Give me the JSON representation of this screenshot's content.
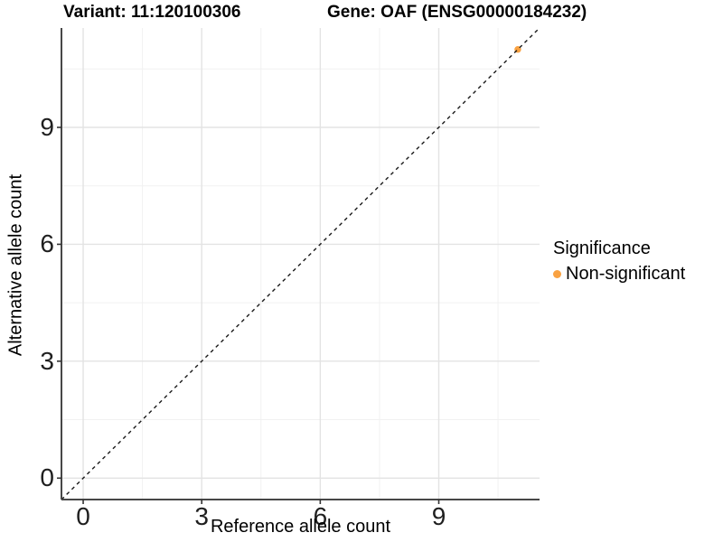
{
  "chart_data": {
    "type": "scatter",
    "titles": {
      "variant": "Variant: 11:120100306",
      "gene": "Gene: OAF (ENSG00000184232)"
    },
    "xlabel": "Reference allele count",
    "ylabel": "Alternative allele count",
    "xlim": [
      -0.55,
      11.55
    ],
    "ylim": [
      -0.55,
      11.55
    ],
    "x_ticks": [
      0,
      3,
      6,
      9
    ],
    "y_ticks": [
      0,
      3,
      6,
      9
    ],
    "x_minor_ticks": [
      1.5,
      4.5,
      7.5,
      10.5
    ],
    "y_minor_ticks": [
      1.5,
      4.5,
      7.5,
      10.5
    ],
    "grid": true,
    "points": [
      {
        "x": 11,
        "y": 11,
        "series": "Non-significant"
      }
    ],
    "reference_line": {
      "kind": "abline",
      "slope": 1,
      "intercept": 0,
      "style": "dashed",
      "color": "#1a1a1a"
    },
    "legend": {
      "title": "Significance",
      "position": "right",
      "items": [
        {
          "label": "Non-significant",
          "color": "#F9A242"
        }
      ]
    },
    "colors": {
      "point": "#F9A242",
      "grid_major": "#e3e3e3",
      "grid_minor": "#f1f1f1",
      "axis_line": "#474747",
      "tick_mark": "#333333"
    }
  }
}
